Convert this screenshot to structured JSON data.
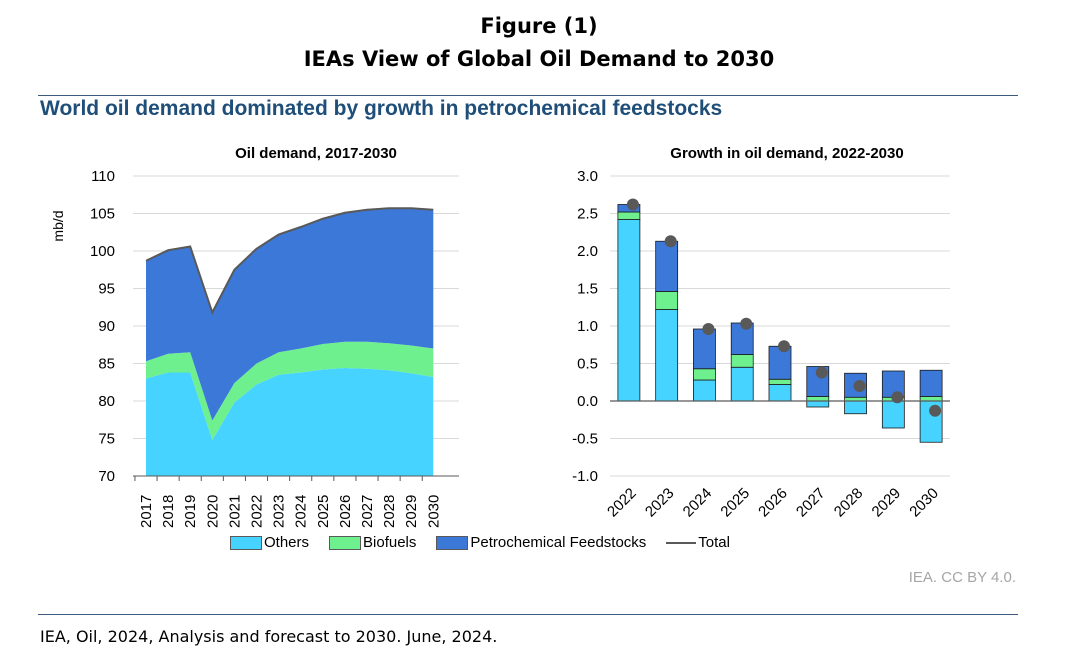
{
  "figure": {
    "label": "Figure (1)",
    "title": "IEAs View of Global Oil Demand to 2030",
    "headline": "World oil demand dominated by growth in petrochemical feedstocks",
    "attribution": "IEA. CC BY 4.0.",
    "source": "IEA, Oil, 2024, Analysis and forecast to 2030. June, 2024."
  },
  "colors": {
    "others": "#47D3FF",
    "biofuels": "#6EF08F",
    "petrochemical": "#3C78D8",
    "total": "#595959",
    "grid": "#D9D9D9",
    "headline": "#1F4E79"
  },
  "legend": {
    "others": "Others",
    "biofuels": "Biofuels",
    "petrochemical": "Petrochemical Feedstocks",
    "total": "Total"
  },
  "chart_data": [
    {
      "type": "area",
      "title": "Oil demand, 2017-2030",
      "ylabel": "mb/d",
      "ylim": [
        70,
        110
      ],
      "yticks": [
        70,
        75,
        80,
        85,
        90,
        95,
        100,
        105,
        110
      ],
      "grid": true,
      "x": [
        "2017",
        "2018",
        "2019",
        "2020",
        "2021",
        "2022",
        "2023",
        "2024",
        "2025",
        "2026",
        "2027",
        "2028",
        "2029",
        "2030"
      ],
      "series": [
        {
          "name": "Others",
          "values": [
            83.0,
            83.8,
            83.8,
            74.8,
            79.8,
            82.2,
            83.5,
            83.8,
            84.2,
            84.4,
            84.3,
            84.1,
            83.7,
            83.2
          ]
        },
        {
          "name": "Biofuels",
          "values": [
            2.3,
            2.5,
            2.7,
            2.6,
            2.6,
            2.8,
            3.0,
            3.2,
            3.4,
            3.5,
            3.6,
            3.6,
            3.7,
            3.8
          ]
        },
        {
          "name": "Petrochemical Feedstocks",
          "values": [
            13.4,
            13.8,
            14.1,
            14.4,
            15.1,
            15.3,
            15.7,
            16.2,
            16.7,
            17.2,
            17.6,
            18.0,
            18.3,
            18.5
          ]
        }
      ],
      "total_line": [
        98.7,
        100.1,
        100.6,
        91.8,
        97.5,
        100.3,
        102.2,
        103.2,
        104.3,
        105.1,
        105.5,
        105.7,
        105.7,
        105.5
      ]
    },
    {
      "type": "bar",
      "title": "Growth in oil demand, 2022-2030",
      "ylim": [
        -1.0,
        3.0
      ],
      "yticks": [
        "3.0",
        "2.5",
        "2.0",
        "1.5",
        "1.0",
        "0.5",
        "0.0",
        "-0.5",
        "-1.0"
      ],
      "grid": true,
      "categories": [
        "2022",
        "2023",
        "2024",
        "2025",
        "2026",
        "2027",
        "2028",
        "2029",
        "2030"
      ],
      "series": [
        {
          "name": "Others",
          "values": [
            2.42,
            1.22,
            0.28,
            0.45,
            0.22,
            -0.08,
            -0.17,
            -0.36,
            -0.55
          ]
        },
        {
          "name": "Biofuels",
          "values": [
            0.1,
            0.24,
            0.15,
            0.17,
            0.07,
            0.06,
            0.05,
            0.05,
            0.06
          ]
        },
        {
          "name": "Petrochemical Feedstocks",
          "values": [
            0.1,
            0.67,
            0.53,
            0.42,
            0.44,
            0.4,
            0.32,
            0.35,
            0.35
          ]
        }
      ],
      "total": [
        2.62,
        2.13,
        0.96,
        1.03,
        0.73,
        0.38,
        0.2,
        0.05,
        -0.13
      ]
    }
  ]
}
